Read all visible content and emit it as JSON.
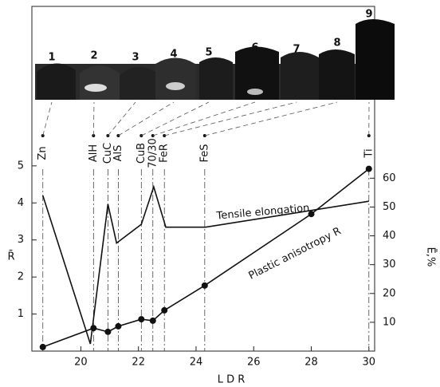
{
  "chart_data": {
    "type": "line",
    "xlabel": "L D R",
    "ylabel": "R̄",
    "y2label": "Ē,%",
    "xlim": [
      18.3,
      30.2
    ],
    "xticks": [
      20,
      22,
      24,
      26,
      28,
      30
    ],
    "ylim": [
      0,
      5.6
    ],
    "yticks": [
      1,
      2,
      3,
      4,
      5
    ],
    "y2lim": [
      0,
      72
    ],
    "y2ticks": [
      10,
      20,
      30,
      40,
      50,
      60
    ],
    "series": [
      {
        "name": "Plastic anisotropy R",
        "color": "#111111",
        "markers": true,
        "x": [
          18.68,
          20.44,
          20.94,
          21.3,
          22.1,
          22.5,
          22.9,
          24.3,
          28.0,
          30.0
        ],
        "values": [
          0.11,
          0.62,
          0.52,
          0.67,
          0.86,
          0.82,
          1.1,
          1.77,
          3.7,
          4.92
        ]
      },
      {
        "name": "Tensile elongation",
        "color": "#111111",
        "markers": false,
        "axis": "y2",
        "x": [
          18.68,
          20.33,
          20.94,
          21.24,
          22.1,
          22.53,
          22.95,
          24.33,
          30.0
        ],
        "values": [
          54,
          2.5,
          51,
          37.5,
          44,
          57,
          43,
          43,
          52
        ]
      }
    ],
    "materials": [
      {
        "label": "Zn",
        "x": 18.68
      },
      {
        "label": "AlH",
        "x": 20.44
      },
      {
        "label": "CuC",
        "x": 20.94
      },
      {
        "label": "AlS",
        "x": 21.3
      },
      {
        "label": "CuB",
        "x": 22.1
      },
      {
        "label": "70/30",
        "x": 22.5
      },
      {
        "label": "FeR",
        "x": 22.9
      },
      {
        "label": "FeS",
        "x": 24.3
      },
      {
        "label": "Ti",
        "x": 30.0
      }
    ],
    "cup_labels": [
      "1",
      "2",
      "3",
      "4",
      "5",
      "6",
      "7",
      "8",
      "9"
    ]
  }
}
